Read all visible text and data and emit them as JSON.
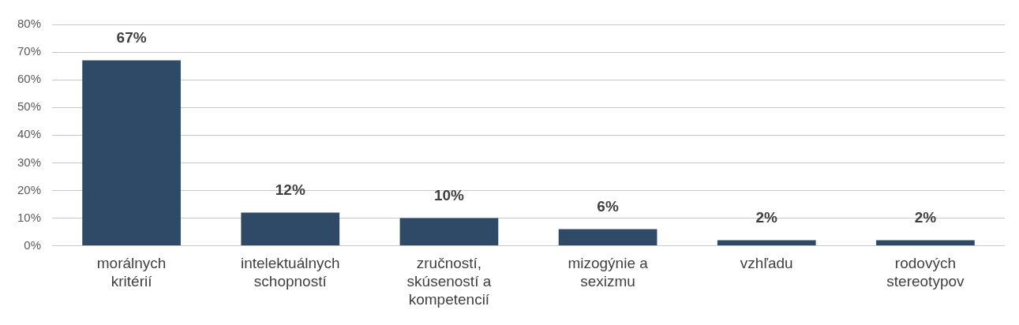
{
  "chart_data": {
    "type": "bar",
    "categories": [
      "morálnych kritérií",
      "intelektuálnych schopností",
      "zručností, skúseností a kompetencií",
      "mizogýnie a sexizmu",
      "vzhľadu",
      "rodových stereotypov"
    ],
    "values": [
      67,
      12,
      10,
      6,
      2,
      2
    ],
    "value_labels": [
      "67%",
      "12%",
      "10%",
      "6%",
      "2%",
      "2%"
    ],
    "color": "#2e4a66",
    "ylim": [
      0,
      80
    ],
    "yticks": [
      {
        "value": 0,
        "label": "0%"
      },
      {
        "value": 10,
        "label": "10%"
      },
      {
        "value": 20,
        "label": "20%"
      },
      {
        "value": 30,
        "label": "30%"
      },
      {
        "value": 40,
        "label": "40%"
      },
      {
        "value": 50,
        "label": "50%"
      },
      {
        "value": 60,
        "label": "60%"
      },
      {
        "value": 70,
        "label": "70%"
      },
      {
        "value": 80,
        "label": "80%"
      }
    ],
    "grid": "y",
    "legend": false
  }
}
